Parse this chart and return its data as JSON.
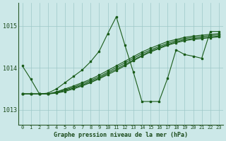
{
  "title": "Graphe pression niveau de la mer (hPa)",
  "bg_color": "#cce8e8",
  "line_color": "#1a5c1a",
  "grid_color": "#9ec8c8",
  "ylabel_values": [
    1013,
    1014,
    1015
  ],
  "xlim": [
    -0.5,
    23.5
  ],
  "ylim": [
    1012.65,
    1015.55
  ],
  "flat_series": [
    [
      1013.38,
      1013.38,
      1013.38,
      1013.38,
      1013.4,
      1013.44,
      1013.5,
      1013.57,
      1013.65,
      1013.74,
      1013.84,
      1013.94,
      1014.05,
      1014.17,
      1014.28,
      1014.38,
      1014.46,
      1014.54,
      1014.6,
      1014.65,
      1014.68,
      1014.7,
      1014.72,
      1014.74
    ],
    [
      1013.38,
      1013.38,
      1013.38,
      1013.38,
      1013.41,
      1013.46,
      1013.52,
      1013.59,
      1013.67,
      1013.76,
      1013.87,
      1013.97,
      1014.08,
      1014.19,
      1014.3,
      1014.4,
      1014.48,
      1014.56,
      1014.62,
      1014.67,
      1014.7,
      1014.72,
      1014.74,
      1014.76
    ],
    [
      1013.38,
      1013.38,
      1013.38,
      1013.38,
      1013.42,
      1013.48,
      1013.54,
      1013.62,
      1013.7,
      1013.79,
      1013.9,
      1014.01,
      1014.12,
      1014.23,
      1014.34,
      1014.43,
      1014.51,
      1014.59,
      1014.65,
      1014.7,
      1014.73,
      1014.75,
      1014.77,
      1014.79
    ],
    [
      1013.38,
      1013.38,
      1013.38,
      1013.38,
      1013.43,
      1013.5,
      1013.57,
      1013.65,
      1013.73,
      1013.83,
      1013.94,
      1014.05,
      1014.16,
      1014.27,
      1014.38,
      1014.47,
      1014.55,
      1014.63,
      1014.68,
      1014.73,
      1014.76,
      1014.78,
      1014.8,
      1014.82
    ]
  ],
  "main_series": [
    1014.05,
    1013.73,
    1013.38,
    1013.4,
    1013.5,
    1013.65,
    1013.8,
    1013.95,
    1014.15,
    1014.4,
    1014.82,
    1015.22,
    1014.55,
    1013.9,
    1013.2,
    1013.2,
    1013.2,
    1013.75,
    1014.43,
    1014.32,
    1014.28,
    1014.23,
    1014.87,
    1014.87
  ],
  "xtick_labels": [
    "0",
    "1",
    "2",
    "3",
    "4",
    "5",
    "6",
    "7",
    "8",
    "9",
    "10",
    "11",
    "12",
    "13",
    "14",
    "15",
    "16",
    "17",
    "18",
    "19",
    "20",
    "21",
    "22",
    "23"
  ]
}
